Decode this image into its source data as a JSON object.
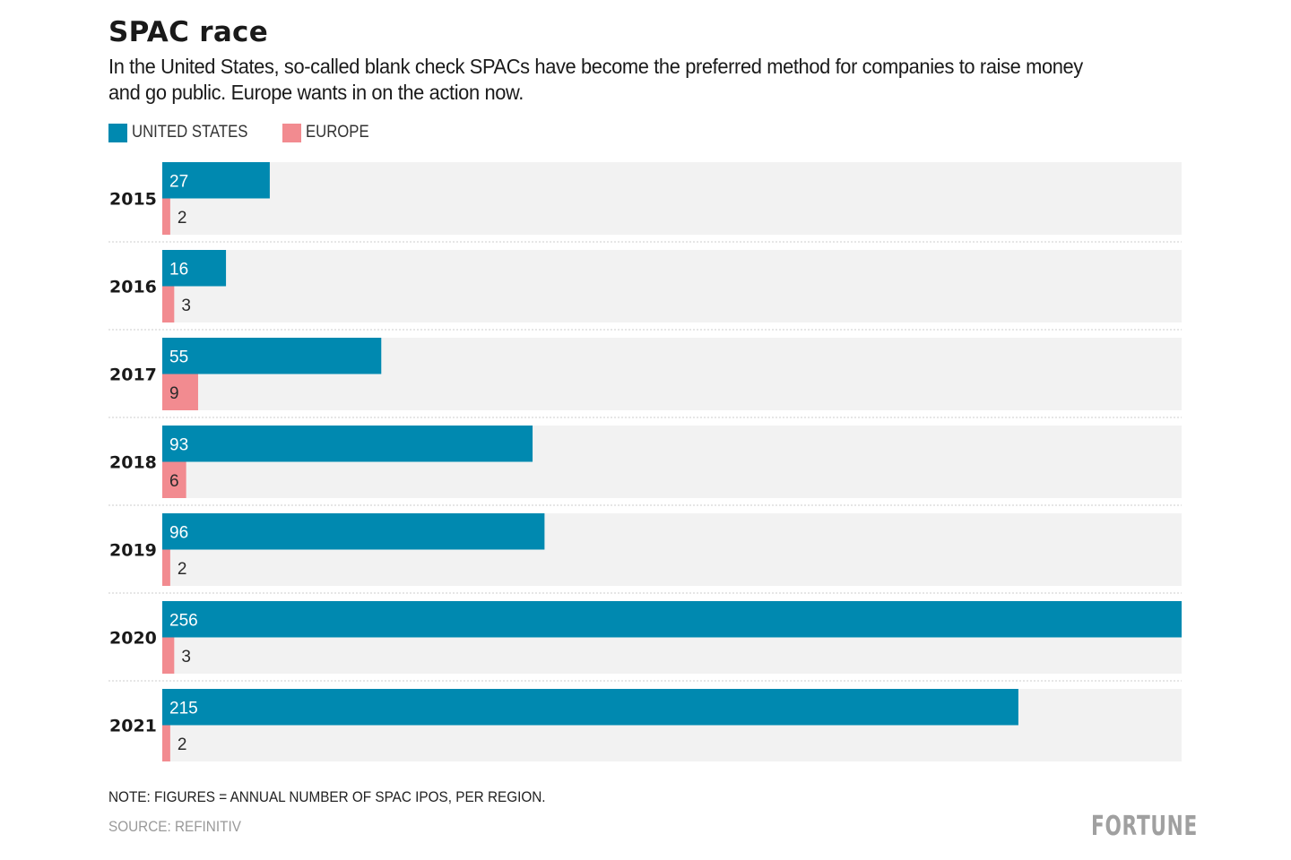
{
  "header": {
    "title": "SPAC race",
    "subtitle": "In the United States, so-called blank check SPACs have become the preferred method for companies to raise money and go public. Europe wants in on the action now."
  },
  "legend": [
    {
      "label": "UNITED STATES",
      "color": "#0089b0"
    },
    {
      "label": "EUROPE",
      "color": "#f28b90"
    }
  ],
  "footer": {
    "note": "NOTE: FIGURES = ANNUAL NUMBER OF SPAC IPOS, PER REGION.",
    "source": "SOURCE: REFINITIV",
    "logo": "FORTUNE"
  },
  "colors": {
    "united_states": "#0089b0",
    "europe": "#f28b90",
    "track": "#f2f2f2",
    "separator": "#d8d8d8"
  },
  "chart_data": {
    "type": "bar",
    "orientation": "horizontal",
    "title": "SPAC race",
    "xlabel": "",
    "ylabel": "",
    "categories": [
      "2015",
      "2016",
      "2017",
      "2018",
      "2019",
      "2020",
      "2021"
    ],
    "series": [
      {
        "name": "UNITED STATES",
        "values": [
          27,
          16,
          55,
          93,
          96,
          256,
          215
        ]
      },
      {
        "name": "EUROPE",
        "values": [
          2,
          3,
          9,
          6,
          2,
          3,
          2
        ]
      }
    ],
    "xlim": [
      0,
      256
    ],
    "grid": false,
    "legend_position": "top-left",
    "data_labels": true
  }
}
